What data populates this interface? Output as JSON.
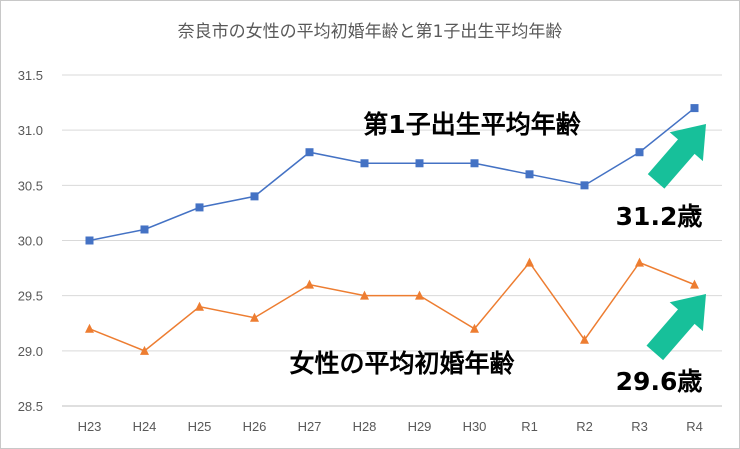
{
  "chart_data": {
    "type": "line",
    "title": "奈良市の女性の平均初婚年齢と第1子出生平均年齢",
    "categories": [
      "H23",
      "H24",
      "H25",
      "H26",
      "H27",
      "H28",
      "H29",
      "H30",
      "R1",
      "R2",
      "R3",
      "R4"
    ],
    "ylim": [
      28.5,
      31.5
    ],
    "yticks": [
      "31.5",
      "31.0",
      "30.5",
      "30.0",
      "29.5",
      "29.0",
      "28.5"
    ],
    "grid": true,
    "series": [
      {
        "name": "第1子出生平均年齢",
        "values": [
          30.0,
          30.1,
          30.3,
          30.4,
          30.8,
          30.7,
          30.7,
          30.7,
          30.6,
          30.5,
          30.8,
          31.2
        ],
        "color": "#4472c4",
        "marker": "square"
      },
      {
        "name": "女性の平均初婚年齢",
        "values": [
          29.2,
          29.0,
          29.4,
          29.3,
          29.6,
          29.5,
          29.5,
          29.2,
          29.8,
          29.1,
          29.8,
          29.6
        ],
        "color": "#ed7d31",
        "marker": "triangle"
      }
    ],
    "annotations": [
      {
        "text": "31.2歳",
        "series": 0
      },
      {
        "text": "29.6歳",
        "series": 1
      }
    ],
    "arrow_color": "#17c09a"
  }
}
